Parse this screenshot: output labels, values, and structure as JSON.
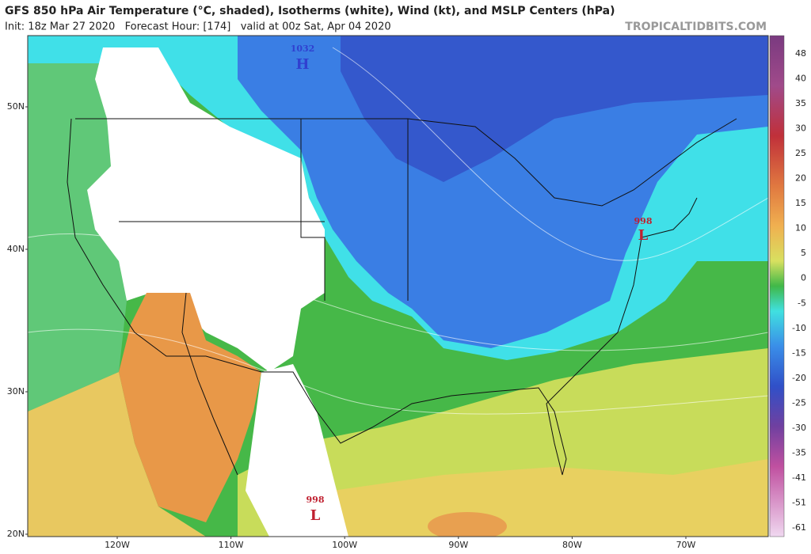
{
  "header": {
    "title": "GFS 850 hPa Air Temperature (°C, shaded), Isotherms (white), Wind (kt), and MSLP Centers (hPa)",
    "subtitle": "Init: 18z Mar 27 2020   Forecast Hour: [174]   valid at 00z Sat, Apr 04 2020",
    "source": "TROPICALTIDBITS.COM"
  },
  "map": {
    "latitude_labels": [
      "50N",
      "40N",
      "30N",
      "20N"
    ],
    "longitude_labels": [
      "120W",
      "110W",
      "100W",
      "90W",
      "80W",
      "70W"
    ],
    "pressure_centers": [
      {
        "value": "1032",
        "symbol": "H"
      },
      {
        "value": "998",
        "symbol": "L"
      },
      {
        "value": "998",
        "symbol": "L"
      }
    ]
  },
  "colorbar": {
    "labels": [
      48,
      40,
      35,
      30,
      25,
      20,
      15,
      10,
      5,
      0,
      -5,
      -10,
      -15,
      -20,
      -25,
      -30,
      -35,
      -41,
      -51,
      -61
    ]
  }
}
